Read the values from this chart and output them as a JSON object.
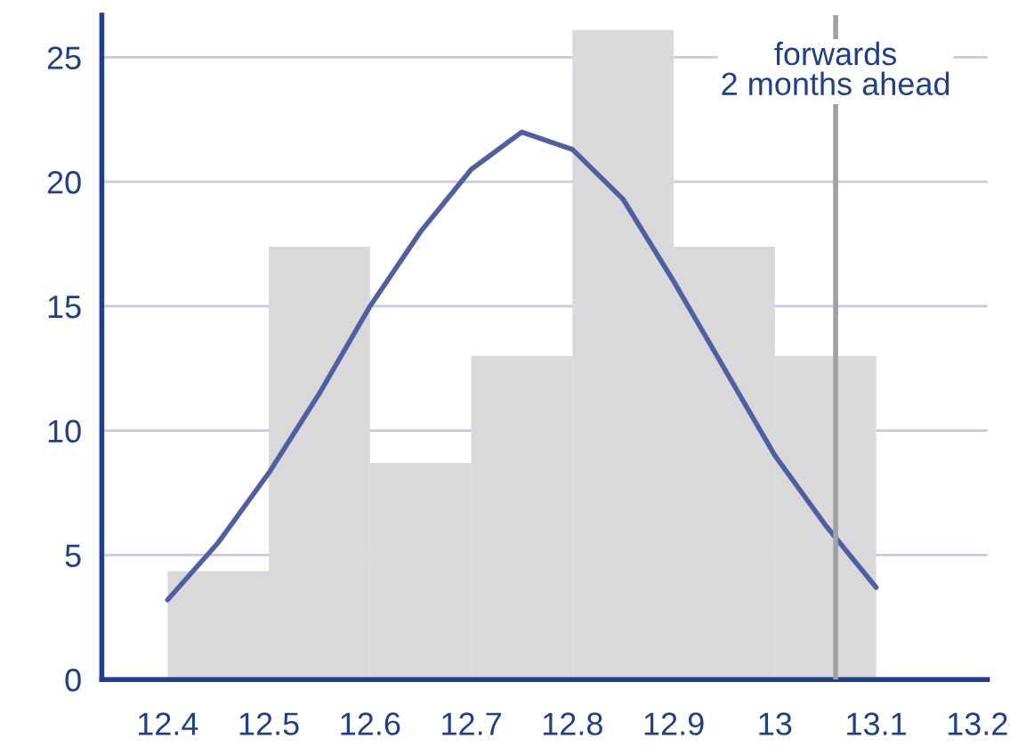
{
  "chart_data": {
    "type": "histogram",
    "bins": [
      12.4,
      12.5,
      12.6,
      12.7,
      12.8,
      12.9,
      13.0,
      13.1
    ],
    "values": [
      4.35,
      17.4,
      8.7,
      13.0,
      26.1,
      17.4,
      13.0
    ],
    "color": "#d9d9db",
    "series": [
      {
        "type": "line",
        "color": "#4f5fa0",
        "x": [
          12.4,
          12.45,
          12.5,
          12.55,
          12.6,
          12.65,
          12.7,
          12.75,
          12.8,
          12.85,
          12.9,
          12.95,
          13.0,
          13.05,
          13.1
        ],
        "values": [
          3.2,
          5.5,
          8.3,
          11.5,
          15.0,
          18.0,
          20.5,
          22.0,
          21.3,
          19.3,
          16.0,
          12.5,
          9.0,
          6.2,
          3.7
        ]
      }
    ],
    "ref_lines": [
      {
        "axis": "x",
        "value": 13.06,
        "label": "forwards\n2 months ahead",
        "color": "#a0a0a0"
      }
    ],
    "xlim": [
      12.335,
      13.21
    ],
    "ylim": [
      0,
      26.7
    ],
    "xticks": [
      12.4,
      12.5,
      12.6,
      12.7,
      12.8,
      12.9,
      13,
      13.1,
      13.2
    ],
    "yticks": [
      0,
      5,
      10,
      15,
      20,
      25
    ],
    "grid": "y"
  }
}
